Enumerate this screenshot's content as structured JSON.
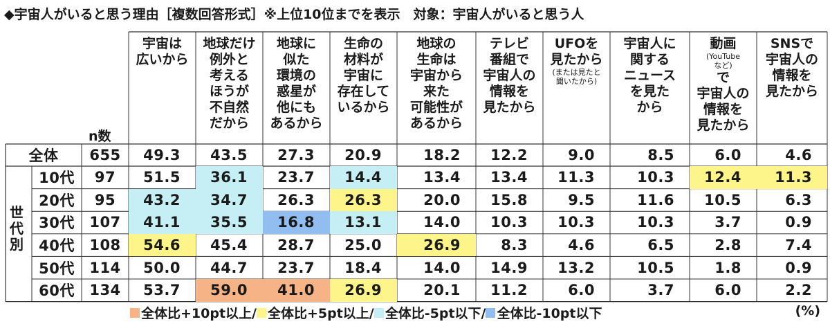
{
  "title": "◆宇宙人がいると思う理由［複数回答形式］※上位10位までを表示　対象：宇宙人がいると思う人",
  "n_label": "n数",
  "side_label": [
    "世",
    "代",
    "別"
  ],
  "unit": "(%)",
  "colors": {
    "plus10": "#f5b386",
    "plus5": "#fdf48a",
    "minus5": "#c5eff5",
    "minus10": "#92bdf0",
    "line": "#333333",
    "total_row_bg": "#ffffff"
  },
  "legend": [
    {
      "key": "plus10",
      "label": "全体比+10pt以上/"
    },
    {
      "key": "plus5",
      "label": "全体比+5pt以上/"
    },
    {
      "key": "minus5",
      "label": "全体比-5pt以下/"
    },
    {
      "key": "minus10",
      "label": "全体比-10pt以下"
    }
  ],
  "chart_data": {
    "type": "table",
    "columns": [
      {
        "lines": [
          "宇宙は",
          "広いから"
        ]
      },
      {
        "lines": [
          "地球だけ",
          "例外と",
          "考える",
          "ほうが",
          "不自然",
          "だから"
        ]
      },
      {
        "lines": [
          "地球に",
          "似た",
          "環境の",
          "惑星が",
          "他にも",
          "あるから"
        ]
      },
      {
        "lines": [
          "生命の",
          "材料が",
          "宇宙に",
          "存在して",
          "いるから"
        ]
      },
      {
        "lines": [
          "地球の",
          "生命は",
          "宇宙から",
          "来た",
          "可能性が",
          "あるから"
        ]
      },
      {
        "lines": [
          "テレビ",
          "番組で",
          "宇宙人の",
          "情報を",
          "見たから"
        ]
      },
      {
        "lines": [
          "UFOを",
          "見たから"
        ],
        "note": [
          "(または見たと",
          "聞いたから)"
        ]
      },
      {
        "lines": [
          "宇宙人に",
          "関する",
          "ニュース",
          "を見た",
          "から"
        ]
      },
      {
        "lines": [
          "動画"
        ],
        "note": [
          "(YouTube",
          "など)"
        ],
        "lines_after": [
          "で",
          "宇宙人の",
          "情報を",
          "見たから"
        ]
      },
      {
        "lines": [
          "SNSで",
          "宇宙人の",
          "情報を",
          "見たから"
        ]
      }
    ],
    "rows": [
      {
        "label": "全体",
        "n": "655",
        "values": [
          "49.3",
          "43.5",
          "27.3",
          "20.9",
          "18.2",
          "12.2",
          "9.0",
          "8.5",
          "6.0",
          "4.6"
        ],
        "highlight": [
          null,
          null,
          null,
          null,
          null,
          null,
          null,
          null,
          null,
          null
        ]
      },
      {
        "label": "10代",
        "n": "97",
        "values": [
          "51.5",
          "36.1",
          "23.7",
          "14.4",
          "13.4",
          "13.4",
          "11.3",
          "10.3",
          "12.4",
          "11.3"
        ],
        "highlight": [
          null,
          "minus5",
          null,
          "minus5",
          null,
          null,
          null,
          null,
          "plus5",
          "plus5"
        ]
      },
      {
        "label": "20代",
        "n": "95",
        "values": [
          "43.2",
          "34.7",
          "26.3",
          "26.3",
          "20.0",
          "15.8",
          "9.5",
          "11.6",
          "10.5",
          "6.3"
        ],
        "highlight": [
          "minus5",
          "minus5",
          null,
          "plus5",
          null,
          null,
          null,
          null,
          null,
          null
        ]
      },
      {
        "label": "30代",
        "n": "107",
        "values": [
          "41.1",
          "35.5",
          "16.8",
          "13.1",
          "14.0",
          "10.3",
          "10.3",
          "10.3",
          "3.7",
          "0.9"
        ],
        "highlight": [
          "minus5",
          "minus5",
          "minus10",
          "minus5",
          null,
          null,
          null,
          null,
          null,
          null
        ]
      },
      {
        "label": "40代",
        "n": "108",
        "values": [
          "54.6",
          "45.4",
          "28.7",
          "25.0",
          "26.9",
          "8.3",
          "4.6",
          "6.5",
          "2.8",
          "7.4"
        ],
        "highlight": [
          "plus5",
          null,
          null,
          null,
          "plus5",
          null,
          null,
          null,
          null,
          null
        ]
      },
      {
        "label": "50代",
        "n": "114",
        "values": [
          "50.0",
          "44.7",
          "23.7",
          "18.4",
          "14.0",
          "14.9",
          "13.2",
          "10.5",
          "1.8",
          "0.9"
        ],
        "highlight": [
          null,
          null,
          null,
          null,
          null,
          null,
          null,
          null,
          null,
          null
        ]
      },
      {
        "label": "60代",
        "n": "134",
        "values": [
          "53.7",
          "59.0",
          "41.0",
          "26.9",
          "20.1",
          "11.2",
          "6.0",
          "3.7",
          "6.0",
          "2.2"
        ],
        "highlight": [
          null,
          "plus10",
          "plus10",
          "plus5",
          null,
          null,
          null,
          null,
          null,
          null
        ]
      }
    ]
  }
}
